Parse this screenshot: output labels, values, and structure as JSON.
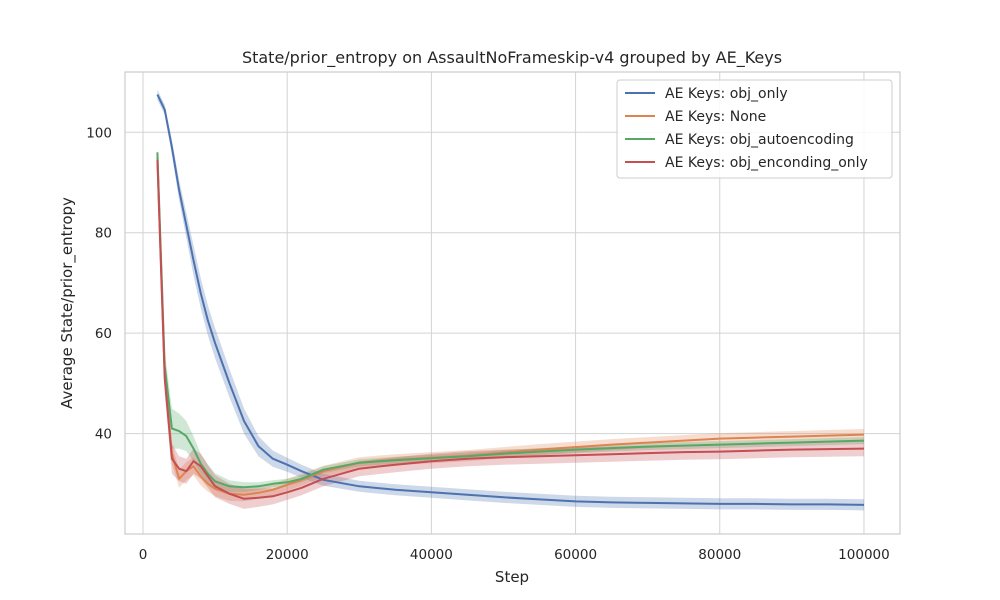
{
  "chart_data": {
    "type": "line",
    "title": "State/prior_entropy on AssaultNoFrameskip-v4 grouped by AE_Keys",
    "xlabel": "Step",
    "ylabel": "Average State/prior_entropy",
    "xlim": [
      -2500,
      105000
    ],
    "ylim": [
      20,
      112
    ],
    "xticks": [
      0,
      20000,
      40000,
      60000,
      80000,
      100000
    ],
    "yticks": [
      40,
      60,
      80,
      100
    ],
    "grid": true,
    "legend_position": "top-right",
    "series": [
      {
        "name": "AE Keys: obj_only",
        "color": "#4c72b0",
        "x": [
          2000,
          3000,
          4000,
          5000,
          6000,
          7000,
          8000,
          9000,
          10000,
          12000,
          14000,
          16000,
          18000,
          20000,
          22000,
          25000,
          30000,
          35000,
          40000,
          45000,
          50000,
          55000,
          60000,
          65000,
          70000,
          75000,
          80000,
          85000,
          90000,
          95000,
          100000
        ],
        "y": [
          107.5,
          104.5,
          97,
          88.5,
          81.5,
          74.5,
          68,
          62.5,
          58,
          50,
          42.5,
          37.5,
          35,
          33.8,
          32.5,
          30.8,
          29.5,
          28.8,
          28.3,
          27.8,
          27.3,
          26.9,
          26.5,
          26.3,
          26.2,
          26.1,
          26,
          26,
          25.9,
          25.9,
          25.8
        ],
        "band": [
          1,
          1,
          1.5,
          2,
          2.5,
          3,
          3,
          3,
          3,
          2.8,
          2.5,
          2,
          1.6,
          1.4,
          1.3,
          1.2,
          1.1,
          1.1,
          1.1,
          1.1,
          1.1,
          1.1,
          1.1,
          1.1,
          1.1,
          1.1,
          1.1,
          1.1,
          1.1,
          1.1,
          1.1
        ]
      },
      {
        "name": "AE Keys: None",
        "color": "#dd8452",
        "x": [
          2000,
          3000,
          4000,
          5000,
          6000,
          7000,
          8000,
          9000,
          10000,
          12000,
          14000,
          16000,
          18000,
          20000,
          22000,
          25000,
          30000,
          35000,
          40000,
          45000,
          50000,
          55000,
          60000,
          65000,
          70000,
          75000,
          80000,
          85000,
          90000,
          95000,
          100000
        ],
        "y": [
          95,
          52,
          36,
          31,
          32.5,
          33.5,
          31.5,
          30,
          29,
          28,
          27.8,
          28.2,
          28.8,
          29.8,
          30.8,
          32.5,
          34.2,
          34.8,
          35.2,
          35.6,
          36.2,
          36.8,
          37.3,
          37.8,
          38.2,
          38.6,
          39,
          39.2,
          39.4,
          39.6,
          39.8
        ],
        "band": [
          1,
          2.5,
          2,
          1.8,
          1.8,
          1.8,
          1.8,
          1.6,
          1.5,
          1.4,
          1.3,
          1.2,
          1.2,
          1.2,
          1.2,
          1.1,
          1.1,
          1.1,
          1.1,
          1.1,
          1.1,
          1.1,
          1.1,
          1.1,
          1.1,
          1.1,
          1.1,
          1.1,
          1.1,
          1.1,
          1.1
        ]
      },
      {
        "name": "AE Keys: obj_autoencoding",
        "color": "#55a868",
        "x": [
          2000,
          3000,
          4000,
          5000,
          6000,
          7000,
          8000,
          9000,
          10000,
          12000,
          14000,
          16000,
          18000,
          20000,
          22000,
          25000,
          30000,
          35000,
          40000,
          45000,
          50000,
          55000,
          60000,
          65000,
          70000,
          75000,
          80000,
          85000,
          90000,
          95000,
          100000
        ],
        "y": [
          96,
          53.5,
          41,
          40.5,
          39.5,
          37,
          34,
          32,
          30.5,
          29.5,
          29.3,
          29.5,
          30,
          30.3,
          31,
          32.8,
          34.2,
          34.7,
          35.1,
          35.5,
          36,
          36.4,
          36.8,
          37.1,
          37.4,
          37.6,
          37.8,
          38,
          38.2,
          38.4,
          38.6
        ],
        "band": [
          1,
          3,
          4,
          3.5,
          3,
          2.5,
          2,
          1.8,
          1.6,
          1.2,
          1,
          0.8,
          0.7,
          0.7,
          0.7,
          0.7,
          0.7,
          0.7,
          0.7,
          0.7,
          0.7,
          0.7,
          0.7,
          0.7,
          0.7,
          0.7,
          0.7,
          0.7,
          0.7,
          0.7,
          0.7
        ]
      },
      {
        "name": "AE Keys: obj_enconding_only",
        "color": "#c44e52",
        "x": [
          2000,
          3000,
          4000,
          5000,
          6000,
          7000,
          8000,
          9000,
          10000,
          12000,
          14000,
          16000,
          18000,
          20000,
          22000,
          25000,
          30000,
          35000,
          40000,
          45000,
          50000,
          55000,
          60000,
          65000,
          70000,
          75000,
          80000,
          85000,
          90000,
          95000,
          100000
        ],
        "y": [
          94.5,
          51,
          35,
          33,
          32.5,
          34.5,
          33.5,
          31.5,
          29.5,
          28,
          27,
          27.2,
          27.5,
          28.3,
          29.2,
          31,
          33,
          33.8,
          34.5,
          35,
          35.3,
          35.5,
          35.7,
          35.9,
          36.1,
          36.3,
          36.4,
          36.6,
          36.8,
          36.9,
          37
        ],
        "band": [
          1,
          3,
          3,
          2.5,
          2.5,
          2.5,
          2.5,
          2.3,
          2.2,
          2,
          2,
          1.8,
          1.6,
          1.5,
          1.5,
          1.5,
          1.5,
          1.5,
          1.5,
          1.5,
          1.5,
          1.5,
          1.5,
          1.5,
          1.5,
          1.5,
          1.5,
          1.5,
          1.5,
          1.5,
          1.5
        ]
      }
    ]
  }
}
